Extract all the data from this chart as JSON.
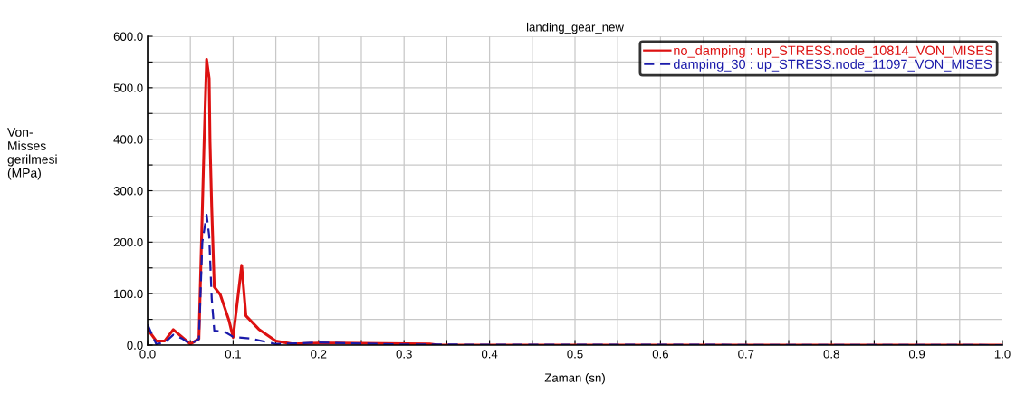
{
  "chart_data": {
    "type": "line",
    "title": "landing_gear_new",
    "xlabel": "Zaman (sn)",
    "ylabel": "Von-\nMisses\ngerilmesi\n(MPa)",
    "xlim": [
      0,
      1
    ],
    "ylim": [
      0,
      600
    ],
    "xticks": [
      {
        "value": 0,
        "label": "0.0"
      },
      {
        "value": 0.05,
        "label": null
      },
      {
        "value": 0.1,
        "label": "0.1"
      },
      {
        "value": 0.15,
        "label": null
      },
      {
        "value": 0.2,
        "label": "0.2"
      },
      {
        "value": 0.25,
        "label": null
      },
      {
        "value": 0.3,
        "label": "0.3"
      },
      {
        "value": 0.35,
        "label": null
      },
      {
        "value": 0.4,
        "label": "0.4"
      },
      {
        "value": 0.45,
        "label": null
      },
      {
        "value": 0.5,
        "label": "0.5"
      },
      {
        "value": 0.55,
        "label": null
      },
      {
        "value": 0.6,
        "label": "0.6"
      },
      {
        "value": 0.65,
        "label": null
      },
      {
        "value": 0.7,
        "label": "0.7"
      },
      {
        "value": 0.75,
        "label": null
      },
      {
        "value": 0.8,
        "label": "0.8"
      },
      {
        "value": 0.85,
        "label": null
      },
      {
        "value": 0.9,
        "label": "0.9"
      },
      {
        "value": 0.95,
        "label": null
      },
      {
        "value": 1,
        "label": "1.0"
      }
    ],
    "yticks": [
      {
        "value": 0,
        "label": "0.0"
      },
      {
        "value": 50,
        "label": null
      },
      {
        "value": 100,
        "label": "100.0"
      },
      {
        "value": 150,
        "label": null
      },
      {
        "value": 200,
        "label": "200.0"
      },
      {
        "value": 250,
        "label": null
      },
      {
        "value": 300,
        "label": "300.0"
      },
      {
        "value": 350,
        "label": null
      },
      {
        "value": 400,
        "label": "400.0"
      },
      {
        "value": 450,
        "label": null
      },
      {
        "value": 500,
        "label": "500.0"
      },
      {
        "value": 550,
        "label": null
      },
      {
        "value": 600,
        "label": "600.0"
      }
    ],
    "grid": true,
    "legend": "top right",
    "series": [
      {
        "name": "no_damping : up_STRESS.node_10814_VON_MISES",
        "color": "#dd1111",
        "line_style": "solid",
        "x": [
          0,
          0.01,
          0.02,
          0.03,
          0.04,
          0.05,
          0.06,
          0.063,
          0.066,
          0.069,
          0.072,
          0.073,
          0.075,
          0.078,
          0.085,
          0.095,
          0.1,
          0.11,
          0.115,
          0.13,
          0.15,
          0.17,
          0.2,
          0.22,
          0.33,
          0.34,
          1.0
        ],
        "values": [
          31,
          8,
          8,
          30,
          16,
          2,
          12,
          200,
          389,
          555,
          518,
          395,
          266,
          113,
          98,
          49,
          15,
          155,
          57,
          31,
          8,
          2,
          4,
          4,
          2,
          0,
          0
        ]
      },
      {
        "name": "damping_30 : up_STRESS.node_11097_VON_MISES",
        "color": "#1a1aaa",
        "line_style": "dashed",
        "x": [
          0,
          0.01,
          0.02,
          0.03,
          0.04,
          0.05,
          0.06,
          0.064,
          0.069,
          0.072,
          0.075,
          0.078,
          0.09,
          0.1,
          0.12,
          0.15,
          0.2,
          0.25,
          0.3,
          1.0
        ],
        "values": [
          40,
          2,
          5,
          20,
          13,
          2,
          12,
          200,
          253,
          213,
          90,
          28,
          26,
          16,
          13,
          2,
          5,
          3,
          1,
          0
        ]
      }
    ]
  }
}
